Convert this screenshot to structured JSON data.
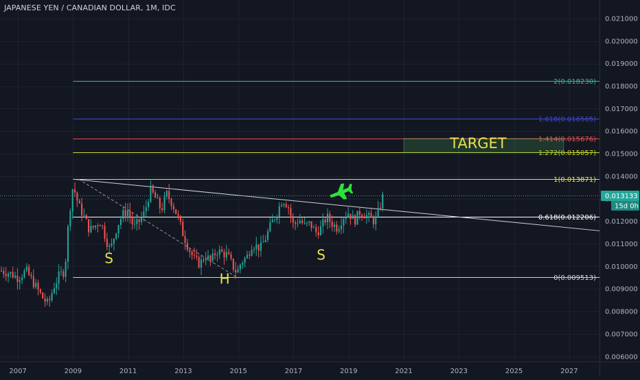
{
  "symbol_title": "JAPANESE YEN / CANADIAN DOLLAR, 1M, IDC",
  "colors": {
    "background": "#131722",
    "up": "#26a69a",
    "down": "#ef5350",
    "axis_text": "#b2b5be",
    "grid": "#1e222d",
    "trendline": "#d1d4dc",
    "pattern_label": "#e8e24a",
    "plane": "#2ce23a",
    "price_tag_bg": "#26a69a"
  },
  "current_price": {
    "label": "0.013133",
    "value": 0.013133,
    "countdown": "15d 0h"
  },
  "fib_levels": [
    {
      "label": "0(0.009513)",
      "value": 0.009513,
      "color": "#d1d4dc"
    },
    {
      "label": "0.618(0.012206)",
      "value": 0.012206,
      "color": "#ffffff"
    },
    {
      "label": "1(0.013871)",
      "value": 0.013871,
      "color": "#e8e24a"
    },
    {
      "label": "1.272(0.015057)",
      "value": 0.015057,
      "color": "#c9d832"
    },
    {
      "label": "1.414(0.015676)",
      "value": 0.015676,
      "color": "#e04f4f"
    },
    {
      "label": "1.618(0.016565)",
      "value": 0.016565,
      "color": "#3d4ad4"
    },
    {
      "label": "2(0.018230)",
      "value": 0.01823,
      "color": "#3fb88f"
    }
  ],
  "annotations": {
    "target": "TARGET",
    "left_shoulder": "S",
    "head": "H",
    "right_shoulder": "S"
  },
  "chart_data": {
    "type": "candlestick",
    "title": "JAPANESE YEN / CANADIAN DOLLAR, 1M, IDC",
    "xlabel": "",
    "ylabel": "",
    "x_ticks": [
      "2007",
      "2009",
      "2011",
      "2013",
      "2015",
      "2017",
      "2019",
      "2021",
      "2023",
      "2025",
      "2027"
    ],
    "x_tick_values": [
      2007,
      2009,
      2011,
      2013,
      2015,
      2017,
      2019,
      2021,
      2023,
      2025,
      2027
    ],
    "y_ticks": [
      "0.006000",
      "0.007000",
      "0.008000",
      "0.009000",
      "0.010000",
      "0.011000",
      "0.012000",
      "0.013000",
      "0.014000",
      "0.015000",
      "0.016000",
      "0.017000",
      "0.018000",
      "0.019000",
      "0.020000",
      "0.021000"
    ],
    "y_tick_values": [
      0.006,
      0.007,
      0.008,
      0.009,
      0.01,
      0.011,
      0.012,
      0.013,
      0.014,
      0.015,
      0.016,
      0.017,
      0.018,
      0.019,
      0.02,
      0.021
    ],
    "xlim": [
      2006.35,
      2028.1
    ],
    "ylim": [
      0.00578,
      0.02182
    ],
    "close_path": [
      [
        2006.4,
        0.0098
      ],
      [
        2006.7,
        0.0097
      ],
      [
        2007.0,
        0.0095
      ],
      [
        2007.3,
        0.0098
      ],
      [
        2007.6,
        0.0092
      ],
      [
        2007.9,
        0.0086
      ],
      [
        2008.1,
        0.0083
      ],
      [
        2008.3,
        0.0091
      ],
      [
        2008.5,
        0.0096
      ],
      [
        2008.7,
        0.0098
      ],
      [
        2008.85,
        0.0122
      ],
      [
        2009.0,
        0.0136
      ],
      [
        2009.2,
        0.0127
      ],
      [
        2009.4,
        0.0122
      ],
      [
        2009.6,
        0.0116
      ],
      [
        2009.8,
        0.0118
      ],
      [
        2010.0,
        0.012
      ],
      [
        2010.2,
        0.0112
      ],
      [
        2010.35,
        0.0107
      ],
      [
        2010.6,
        0.0118
      ],
      [
        2010.8,
        0.0123
      ],
      [
        2011.0,
        0.0125
      ],
      [
        2011.2,
        0.0117
      ],
      [
        2011.4,
        0.012
      ],
      [
        2011.6,
        0.0124
      ],
      [
        2011.8,
        0.0134
      ],
      [
        2012.0,
        0.013
      ],
      [
        2012.2,
        0.0125
      ],
      [
        2012.4,
        0.0132
      ],
      [
        2012.6,
        0.0128
      ],
      [
        2012.8,
        0.0122
      ],
      [
        2013.0,
        0.0114
      ],
      [
        2013.2,
        0.0108
      ],
      [
        2013.4,
        0.0103
      ],
      [
        2013.6,
        0.0101
      ],
      [
        2013.8,
        0.0105
      ],
      [
        2014.0,
        0.0102
      ],
      [
        2014.2,
        0.0107
      ],
      [
        2014.4,
        0.0106
      ],
      [
        2014.6,
        0.0105
      ],
      [
        2014.8,
        0.01
      ],
      [
        2014.95,
        0.0097
      ],
      [
        2015.1,
        0.0102
      ],
      [
        2015.3,
        0.0104
      ],
      [
        2015.5,
        0.011
      ],
      [
        2015.8,
        0.0108
      ],
      [
        2016.0,
        0.0113
      ],
      [
        2016.2,
        0.0119
      ],
      [
        2016.4,
        0.0124
      ],
      [
        2016.6,
        0.013
      ],
      [
        2016.8,
        0.0127
      ],
      [
        2017.0,
        0.0118
      ],
      [
        2017.2,
        0.0121
      ],
      [
        2017.4,
        0.0118
      ],
      [
        2017.6,
        0.0119
      ],
      [
        2017.8,
        0.0115
      ],
      [
        2018.0,
        0.0117
      ],
      [
        2018.2,
        0.0122
      ],
      [
        2018.4,
        0.0119
      ],
      [
        2018.6,
        0.0117
      ],
      [
        2018.8,
        0.0122
      ],
      [
        2019.0,
        0.0124
      ],
      [
        2019.2,
        0.012
      ],
      [
        2019.4,
        0.0124
      ],
      [
        2019.6,
        0.0123
      ],
      [
        2019.8,
        0.0121
      ],
      [
        2019.95,
        0.012
      ],
      [
        2020.1,
        0.0125
      ],
      [
        2020.25,
        0.01313
      ]
    ],
    "trendline": {
      "from": [
        2009.0,
        0.01387
      ],
      "to": [
        2028.1,
        0.01158
      ]
    },
    "dashed_line": {
      "from": [
        2009.2,
        0.01387
      ],
      "to": [
        2014.95,
        0.00951
      ]
    },
    "target_zone": {
      "x": [
        2021.0,
        2026.8
      ],
      "y": [
        0.015057,
        0.015676
      ]
    },
    "plane_position": [
      2018.7,
      0.01335
    ]
  }
}
